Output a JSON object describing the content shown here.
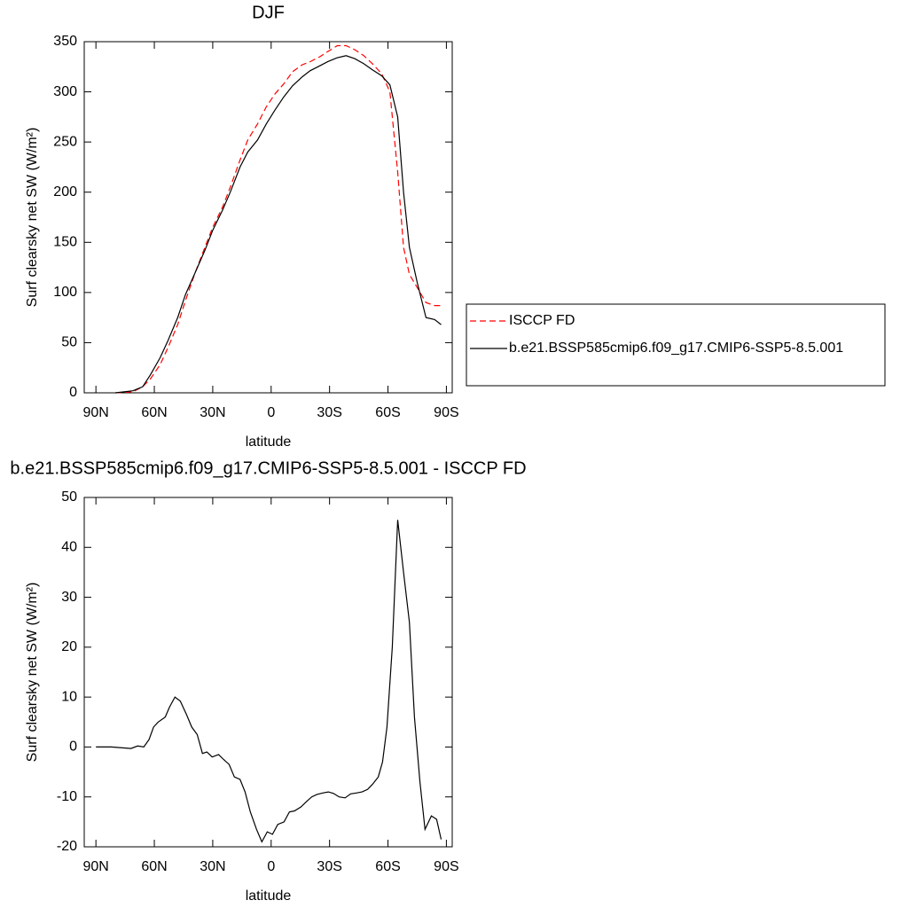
{
  "chart_data": [
    {
      "type": "line",
      "title": "DJF",
      "xlabel": "latitude",
      "ylabel": "Surf clearsky net SW (W/m²)",
      "xlim": [
        96,
        -93
      ],
      "ylim": [
        0,
        350
      ],
      "xticks": [
        {
          "value": 90,
          "label": "90N"
        },
        {
          "value": 60,
          "label": "60N"
        },
        {
          "value": 30,
          "label": "30N"
        },
        0,
        {
          "value": -30,
          "label": "30S"
        },
        {
          "value": -60,
          "label": "60S"
        },
        {
          "value": -90,
          "label": "90S"
        }
      ],
      "yticks": [
        0,
        50,
        100,
        150,
        200,
        250,
        300,
        350
      ],
      "legend": "right",
      "x": [
        80,
        71,
        66,
        62,
        57,
        53,
        48,
        44,
        39,
        34,
        30,
        25,
        21,
        16,
        12,
        7,
        2.5,
        -2,
        -6.5,
        -11,
        -16,
        -20,
        -25,
        -29,
        -34,
        -38.5,
        -43,
        -47.6,
        -52,
        -56.8,
        -61,
        -65,
        -68,
        -71,
        -75,
        -79.5,
        -84,
        -87.3
      ],
      "series": [
        {
          "name": "ISCCP FD",
          "color": "#ff0000",
          "dashed": true,
          "values": [
            0,
            1,
            6,
            14,
            28,
            45,
            68,
            92,
            120,
            145,
            165,
            185,
            205,
            232,
            252,
            268,
            285,
            298,
            308,
            320,
            327,
            330,
            335,
            340,
            346,
            346,
            342,
            336,
            328,
            318,
            300,
            220,
            145,
            118,
            105,
            90,
            87,
            87
          ]
        },
        {
          "name": "b.e21.BSSP585cmip6.f09_g17.CMIP6-SSP5-8.5.001",
          "color": "#000000",
          "values": [
            0,
            2,
            6,
            18,
            35,
            52,
            75,
            98,
            120,
            142,
            162,
            182,
            200,
            225,
            240,
            252,
            268,
            282,
            295,
            306,
            315,
            321,
            326,
            330,
            334,
            336,
            333,
            328,
            322,
            316,
            307,
            275,
            200,
            145,
            110,
            75,
            73,
            68
          ]
        }
      ]
    },
    {
      "type": "line",
      "title": "b.e21.BSSP585cmip6.f09_g17.CMIP6-SSP5-8.5.001 - ISCCP FD",
      "xlabel": "latitude",
      "ylabel": "Surf clearsky net SW (W/m²)",
      "xlim": [
        96,
        -93
      ],
      "ylim": [
        -20,
        50
      ],
      "xticks": [
        {
          "value": 90,
          "label": "90N"
        },
        {
          "value": 60,
          "label": "60N"
        },
        {
          "value": 30,
          "label": "30N"
        },
        0,
        {
          "value": -30,
          "label": "30S"
        },
        {
          "value": -60,
          "label": "60S"
        },
        {
          "value": -90,
          "label": "90S"
        }
      ],
      "yticks": [
        -20,
        -10,
        0,
        10,
        20,
        30,
        40,
        50
      ],
      "x": [
        90,
        82,
        72,
        68.6,
        65.4,
        62.7,
        60.4,
        58,
        54.4,
        52.2,
        49.4,
        46.7,
        43.5,
        40.8,
        38,
        35.3,
        33,
        30.3,
        27,
        24.4,
        21.6,
        18.9,
        16,
        13.4,
        10.7,
        7.5,
        4.8,
        2,
        -0.7,
        -3.4,
        -6.6,
        -9.4,
        -12,
        -15.3,
        -18,
        -20.8,
        -23.5,
        -26.7,
        -29.4,
        -32,
        -34.9,
        -38,
        -40.8,
        -44,
        -46.7,
        -49.5,
        -52,
        -55,
        -57.2,
        -59.5,
        -62.2,
        -65,
        -68,
        -71,
        -73.6,
        -76.4,
        -79,
        -82.3,
        -85,
        -87.3
      ],
      "series": [
        {
          "color": "#000000",
          "values": [
            0,
            0,
            -0.3,
            0.2,
            0,
            1.5,
            4,
            5,
            6,
            8,
            10,
            9.2,
            6.5,
            4,
            2.5,
            -1.3,
            -1,
            -2,
            -1.5,
            -2.5,
            -3.5,
            -6,
            -6.5,
            -9,
            -13,
            -16.5,
            -19,
            -17,
            -17.5,
            -15.5,
            -15,
            -13,
            -12.8,
            -12,
            -11,
            -10,
            -9.5,
            -9.2,
            -9,
            -9.3,
            -10,
            -10.2,
            -9.4,
            -9.2,
            -9,
            -8.5,
            -7.5,
            -6,
            -3,
            4,
            20,
            45.5,
            35,
            25,
            6,
            -7,
            -16.5,
            -13.8,
            -14.5,
            -18.5
          ]
        }
      ]
    }
  ]
}
